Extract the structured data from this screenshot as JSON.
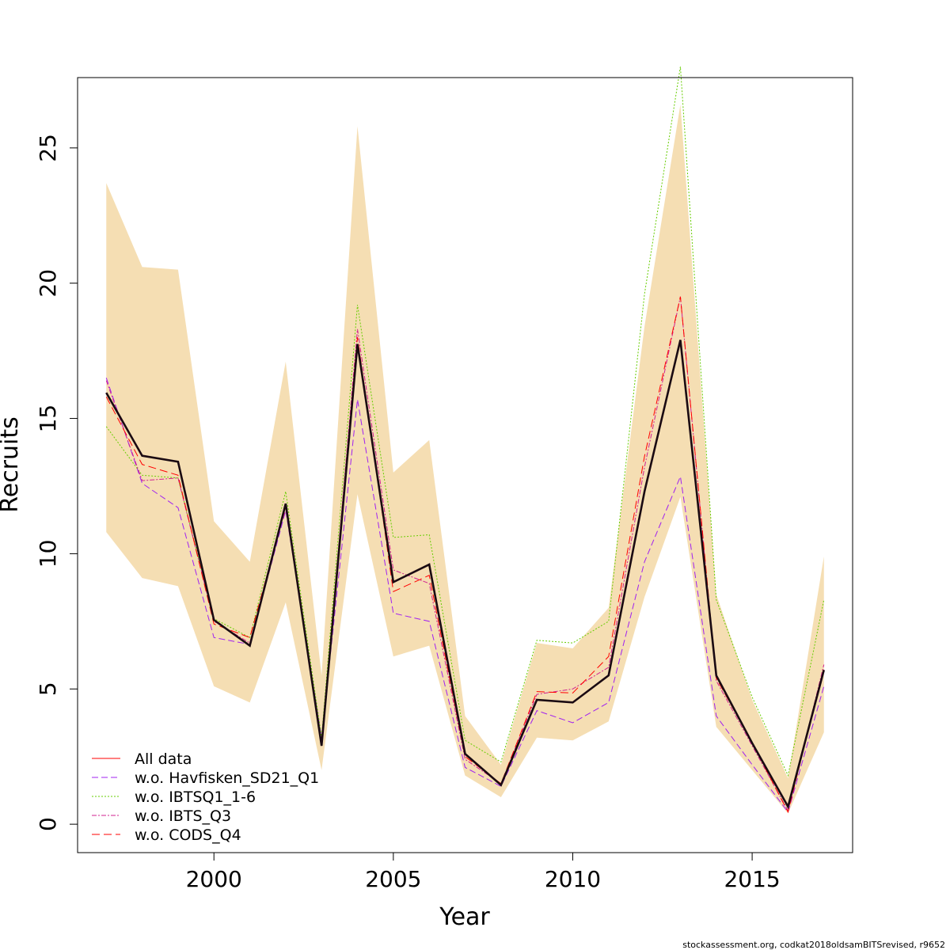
{
  "chart_data": {
    "type": "line",
    "xlabel": "Year",
    "ylabel": "Recruits",
    "xlim": [
      1996.2,
      2017.8
    ],
    "ylim": [
      -1.05,
      27.6
    ],
    "xticks": [
      2000,
      2005,
      2010,
      2015
    ],
    "yticks": [
      0,
      5,
      10,
      15,
      20,
      25
    ],
    "grid": false,
    "legend_position": "bottom-left",
    "x": [
      1997,
      1998,
      1999,
      2000,
      2001,
      2002,
      2003,
      2004,
      2005,
      2006,
      2007,
      2008,
      2009,
      2010,
      2011,
      2012,
      2013,
      2014,
      2015,
      2016,
      2017
    ],
    "confidence_band": {
      "color": "#f5deb3",
      "upper": [
        23.7,
        20.6,
        20.5,
        11.2,
        9.7,
        17.1,
        5.5,
        25.8,
        13.0,
        14.2,
        4.0,
        2.2,
        6.7,
        6.5,
        8.0,
        18.4,
        26.6,
        8.5,
        4.6,
        1.7,
        9.9
      ],
      "lower": [
        10.8,
        9.1,
        8.8,
        5.1,
        4.5,
        8.2,
        2.0,
        12.2,
        6.2,
        6.6,
        1.8,
        1.0,
        3.2,
        3.1,
        3.8,
        8.4,
        12.1,
        3.6,
        2.0,
        0.4,
        3.4
      ]
    },
    "series": [
      {
        "name": "All data",
        "color": "#ff0000",
        "dash": "solid",
        "values": [
          15.95,
          13.62,
          13.4,
          7.55,
          6.6,
          11.85,
          2.9,
          17.75,
          8.95,
          9.6,
          2.6,
          1.45,
          4.6,
          4.5,
          5.5,
          12.3,
          17.9,
          5.5,
          3.0,
          0.65,
          5.7
        ]
      },
      {
        "name": "w.o. Havfisken_SD21_Q1",
        "color": "#a020f0",
        "dash": "8,4",
        "values": [
          16.5,
          12.6,
          11.7,
          6.9,
          6.65,
          11.6,
          3.2,
          15.7,
          7.8,
          7.5,
          2.1,
          1.4,
          4.2,
          3.75,
          4.5,
          9.7,
          12.85,
          4.0,
          2.2,
          0.45,
          5.1
        ]
      },
      {
        "name": "w.o. IBTSQ1_1-6",
        "color": "#66cd00",
        "dash": "2,2",
        "values": [
          14.7,
          12.9,
          12.8,
          7.6,
          6.9,
          12.3,
          3.2,
          19.2,
          10.6,
          10.7,
          3.1,
          2.3,
          6.8,
          6.7,
          7.5,
          19.6,
          28.0,
          8.3,
          4.7,
          1.8,
          8.3
        ]
      },
      {
        "name": "w.o. IBTS_Q3",
        "color": "#d02090",
        "dash": "6,2,2,2",
        "values": [
          16.4,
          12.7,
          12.8,
          7.5,
          6.7,
          11.8,
          3.0,
          18.3,
          9.4,
          8.9,
          2.4,
          1.5,
          4.8,
          5.0,
          5.8,
          13.2,
          19.5,
          5.3,
          2.9,
          0.5,
          5.9
        ]
      },
      {
        "name": "w.o. CODS_Q4",
        "color": "#ff0000",
        "dash": "10,5",
        "values": [
          15.8,
          13.3,
          12.9,
          7.4,
          6.9,
          11.7,
          3.0,
          18.0,
          8.6,
          9.2,
          2.5,
          1.5,
          4.9,
          4.85,
          6.2,
          13.6,
          19.5,
          5.4,
          3.0,
          0.45,
          5.8
        ]
      }
    ],
    "main_line": {
      "color": "#1a0a12",
      "values": [
        15.95,
        13.62,
        13.4,
        7.55,
        6.6,
        11.85,
        2.9,
        17.75,
        8.95,
        9.6,
        2.6,
        1.45,
        4.6,
        4.5,
        5.5,
        12.3,
        17.9,
        5.5,
        3.0,
        0.65,
        5.7
      ]
    },
    "footer": "stockassessment.org, codkat2018oldsamBITSrevised, r9652"
  }
}
